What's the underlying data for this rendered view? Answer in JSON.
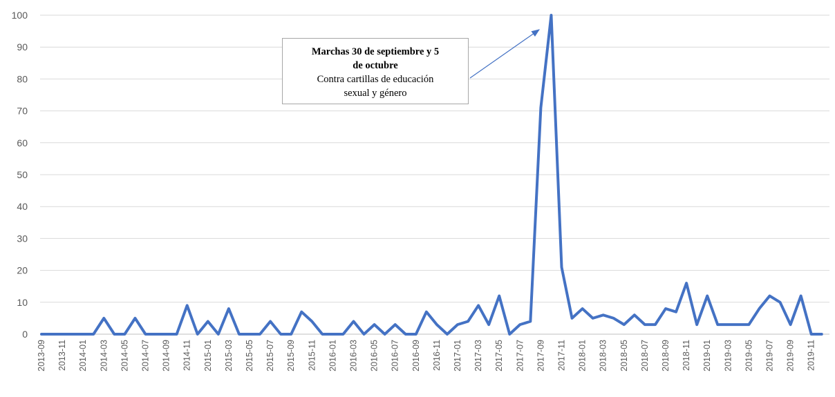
{
  "chart_data": {
    "type": "line",
    "title": "",
    "xlabel": "",
    "ylabel": "",
    "ylim": [
      0,
      100
    ],
    "yticks": [
      0,
      10,
      20,
      30,
      40,
      50,
      60,
      70,
      80,
      90,
      100
    ],
    "grid": true,
    "legend": "none",
    "x": [
      "2013-09",
      "2013-10",
      "2013-11",
      "2013-12",
      "2014-01",
      "2014-02",
      "2014-03",
      "2014-04",
      "2014-05",
      "2014-06",
      "2014-07",
      "2014-08",
      "2014-09",
      "2014-10",
      "2014-11",
      "2014-12",
      "2015-01",
      "2015-02",
      "2015-03",
      "2015-04",
      "2015-05",
      "2015-06",
      "2015-07",
      "2015-08",
      "2015-09",
      "2015-10",
      "2015-11",
      "2015-12",
      "2016-01",
      "2016-02",
      "2016-03",
      "2016-04",
      "2016-05",
      "2016-06",
      "2016-07",
      "2016-08",
      "2016-09",
      "2016-10",
      "2016-11",
      "2016-12",
      "2017-01",
      "2017-02",
      "2017-03",
      "2017-04",
      "2017-05",
      "2017-06",
      "2017-07",
      "2017-08",
      "2017-09",
      "2017-10",
      "2017-11",
      "2017-12",
      "2018-01",
      "2018-02",
      "2018-03",
      "2018-04",
      "2018-05",
      "2018-06",
      "2018-07",
      "2018-08",
      "2018-09",
      "2018-10",
      "2018-11",
      "2018-12",
      "2019-01",
      "2019-02",
      "2019-03",
      "2019-04",
      "2019-05",
      "2019-06",
      "2019-07",
      "2019-08",
      "2019-09",
      "2019-10",
      "2019-11",
      "2019-12"
    ],
    "x_tick_labels": [
      "2013-09",
      "2013-11",
      "2014-01",
      "2014-03",
      "2014-05",
      "2014-07",
      "2014-09",
      "2014-11",
      "2015-01",
      "2015-03",
      "2015-05",
      "2015-07",
      "2015-09",
      "2015-11",
      "2016-01",
      "2016-03",
      "2016-05",
      "2016-07",
      "2016-09",
      "2016-11",
      "2017-01",
      "2017-03",
      "2017-05",
      "2017-07",
      "2017-09",
      "2017-11",
      "2018-01",
      "2018-03",
      "2018-05",
      "2018-07",
      "2018-09",
      "2018-11",
      "2019-01",
      "2019-03",
      "2019-05",
      "2019-07",
      "2019-09",
      "2019-11"
    ],
    "series": [
      {
        "values": [
          0,
          0,
          0,
          0,
          0,
          0,
          5,
          0,
          0,
          5,
          0,
          0,
          0,
          0,
          9,
          0,
          4,
          0,
          8,
          0,
          0,
          0,
          4,
          0,
          0,
          7,
          4,
          0,
          0,
          0,
          4,
          0,
          3,
          0,
          3,
          0,
          0,
          7,
          3,
          0,
          3,
          4,
          9,
          3,
          12,
          0,
          3,
          4,
          71,
          100,
          21,
          5,
          8,
          5,
          6,
          5,
          3,
          6,
          3,
          3,
          8,
          7,
          16,
          3,
          12,
          3,
          3,
          3,
          3,
          8,
          12,
          10,
          3,
          12,
          0,
          0
        ],
        "color": "#4472c4"
      }
    ],
    "annotation": {
      "line1": "Marchas  30 de  septiembre  y 5",
      "line2": "de octubre",
      "line3": "Contra cartillas de educación",
      "line4": "sexual y género"
    }
  }
}
